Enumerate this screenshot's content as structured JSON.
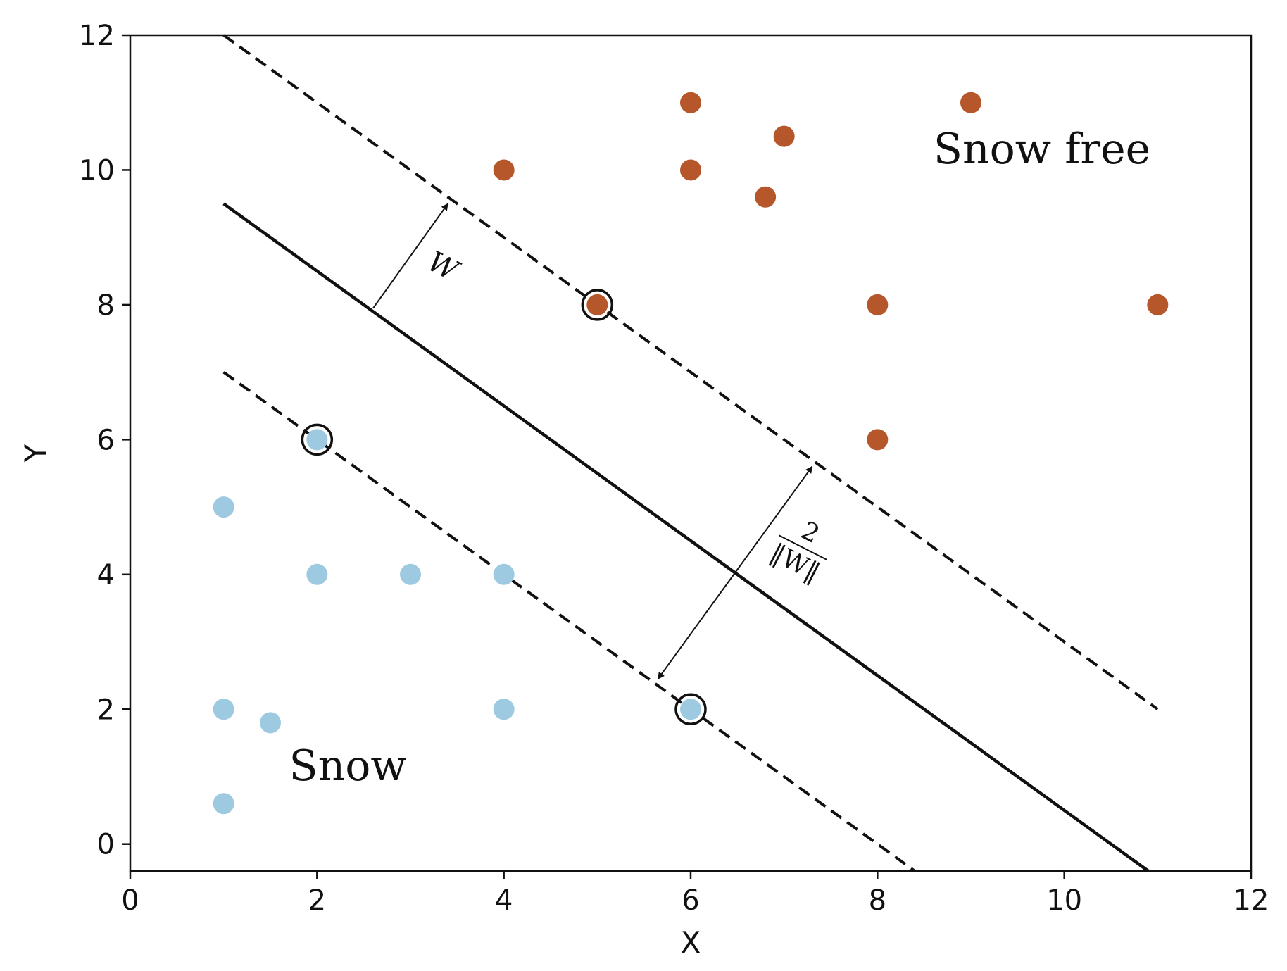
{
  "chart_data": {
    "type": "scatter",
    "xlabel": "X",
    "ylabel": "Y",
    "xlim": [
      0,
      12
    ],
    "ylim": [
      -0.4,
      12
    ],
    "xticks": [
      0,
      2,
      4,
      6,
      8,
      10,
      12
    ],
    "yticks": [
      0,
      2,
      4,
      6,
      8,
      10,
      12
    ],
    "grid": false,
    "series": [
      {
        "class": "snow",
        "color": "#9ecae1",
        "points": [
          [
            1,
            5
          ],
          [
            2,
            6
          ],
          [
            2,
            4
          ],
          [
            3,
            4
          ],
          [
            4,
            4
          ],
          [
            1,
            2
          ],
          [
            1.5,
            1.8
          ],
          [
            4,
            2
          ],
          [
            1,
            0.6
          ],
          [
            6,
            2
          ]
        ]
      },
      {
        "class": "snow-free",
        "color": "#b5562b",
        "points": [
          [
            4,
            10
          ],
          [
            6,
            11
          ],
          [
            6,
            10
          ],
          [
            7,
            10.5
          ],
          [
            6.8,
            9.6
          ],
          [
            9,
            11
          ],
          [
            5,
            8
          ],
          [
            8,
            8
          ],
          [
            11,
            8
          ],
          [
            8,
            6
          ]
        ]
      }
    ],
    "support_vectors": [
      [
        5,
        8
      ],
      [
        2,
        6
      ],
      [
        6,
        2
      ]
    ],
    "lines": [
      {
        "name": "decision-boundary",
        "style": "solid",
        "points": [
          [
            1,
            9.5
          ],
          [
            10.9,
            -0.4
          ]
        ]
      },
      {
        "name": "upper-margin",
        "style": "dashed",
        "points": [
          [
            1,
            12
          ],
          [
            11,
            2
          ]
        ]
      },
      {
        "name": "lower-margin",
        "style": "dashed",
        "points": [
          [
            1,
            7
          ],
          [
            8.4,
            -0.4
          ]
        ]
      }
    ],
    "annotations": [
      {
        "name": "w-vector",
        "from": [
          2.6,
          7.95
        ],
        "to": [
          3.4,
          9.5
        ],
        "label": "W",
        "label_at": [
          3.3,
          8.45
        ]
      },
      {
        "name": "margin-width",
        "from": [
          5.65,
          2.45
        ],
        "to": [
          7.3,
          5.6
        ],
        "heads": "both",
        "numerator": "2",
        "denominator": "‖W‖",
        "label_at": [
          7.2,
          4.4
        ]
      }
    ],
    "region_labels": [
      {
        "text": "Snow free",
        "at": [
          8.6,
          10.1
        ]
      },
      {
        "text": "Snow",
        "at": [
          1.7,
          0.95
        ]
      }
    ]
  }
}
